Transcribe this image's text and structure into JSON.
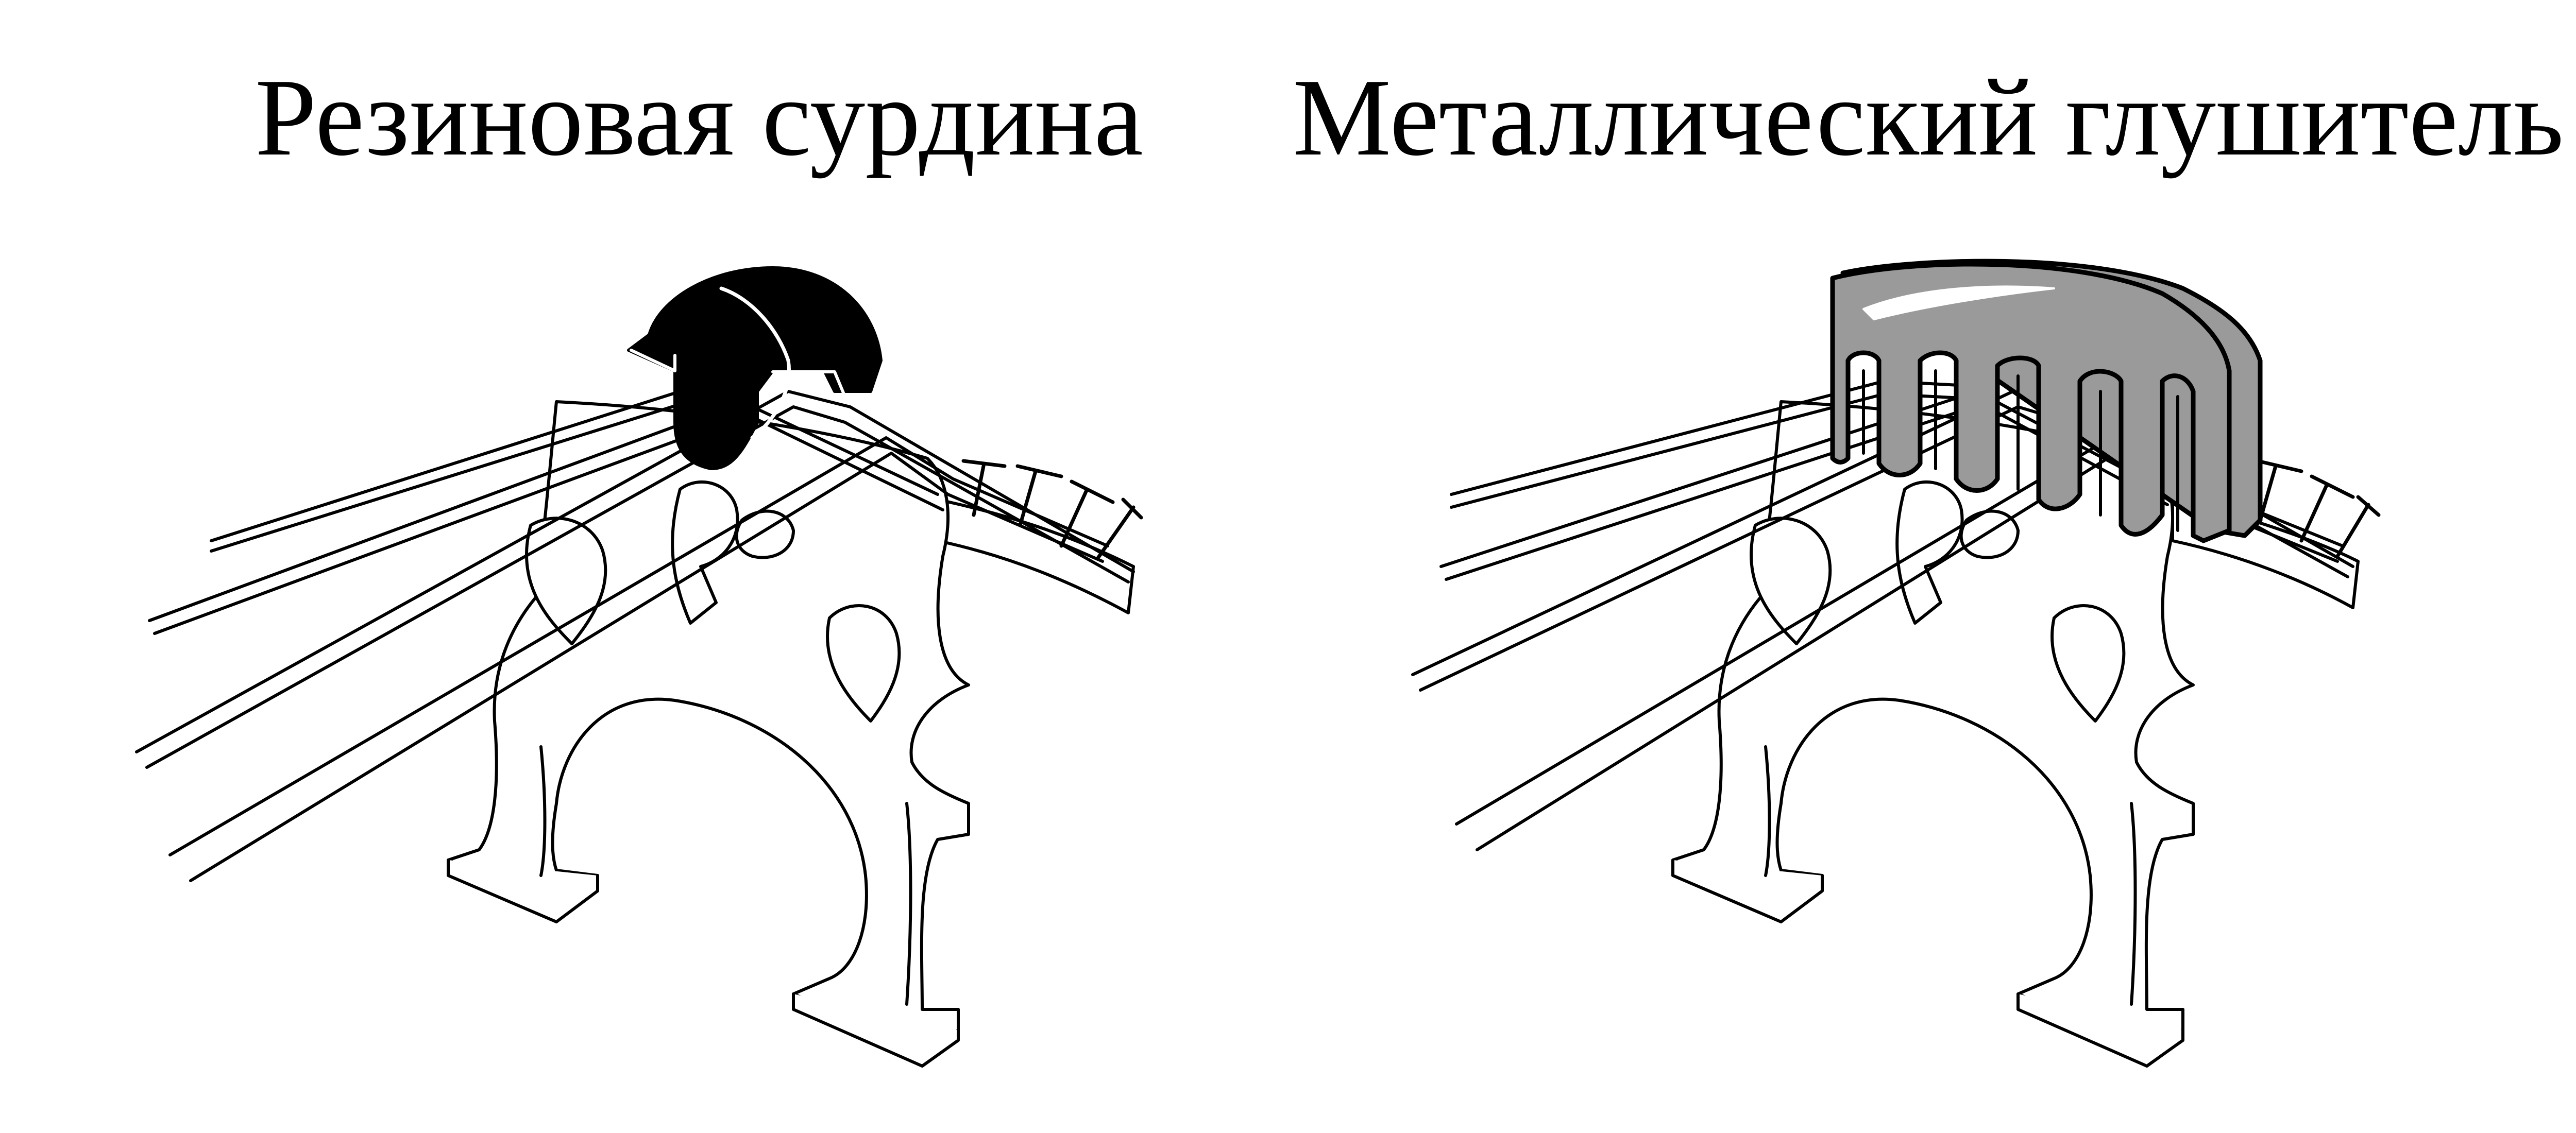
{
  "figures": [
    {
      "caption": "Резиновая сурдина",
      "mute_icon": "rubber-mute-icon",
      "mute_color": "#000000"
    },
    {
      "caption": "Металлический глушитель",
      "mute_icon": "metal-mute-icon",
      "mute_color": "#9a9a9a"
    }
  ],
  "colors": {
    "outline": "#000000",
    "background": "#ffffff",
    "highlight": "#ffffff"
  }
}
